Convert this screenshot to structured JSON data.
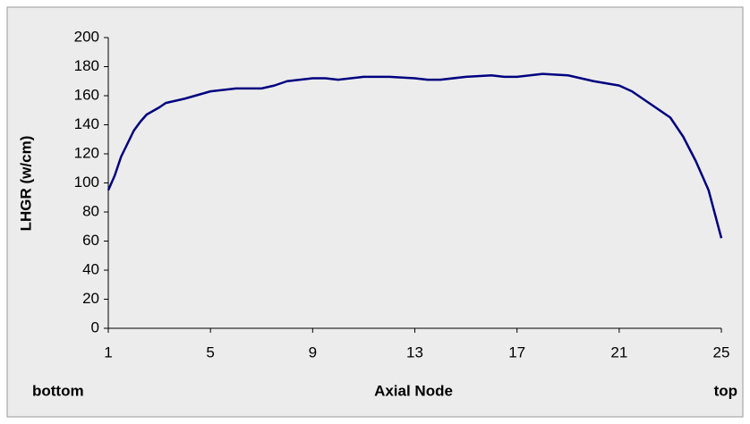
{
  "chart_data": {
    "type": "line",
    "x_label": "Axial Node",
    "y_label": "LHGR (w/cm)",
    "annotations": [
      "bottom",
      "top"
    ],
    "x": [
      1,
      1.25,
      1.5,
      1.75,
      2,
      2.25,
      2.5,
      3,
      3.25,
      4,
      5,
      6,
      7,
      7.5,
      8,
      9,
      9.5,
      10,
      11,
      12,
      13,
      13.5,
      14,
      15,
      16,
      16.5,
      17,
      18,
      19,
      20,
      21,
      21.5,
      22,
      23,
      23.5,
      24,
      24.5,
      25
    ],
    "series": [
      {
        "color": "#000080",
        "values": [
          95,
          105,
          118,
          127,
          136,
          142,
          147,
          152,
          155,
          158,
          163,
          165,
          165,
          167,
          170,
          172,
          172,
          171,
          173,
          173,
          172,
          171,
          171,
          173,
          174,
          173,
          173,
          175,
          174,
          170,
          167,
          163,
          157,
          145,
          132,
          115,
          95,
          62
        ]
      }
    ],
    "xlim": [
      1,
      25
    ],
    "xticks": [
      1,
      5,
      9,
      13,
      17,
      21,
      25
    ],
    "ylim": [
      0,
      200
    ],
    "yticks": [
      0,
      20,
      40,
      60,
      80,
      100,
      120,
      140,
      160,
      180,
      200
    ],
    "grid": false
  }
}
